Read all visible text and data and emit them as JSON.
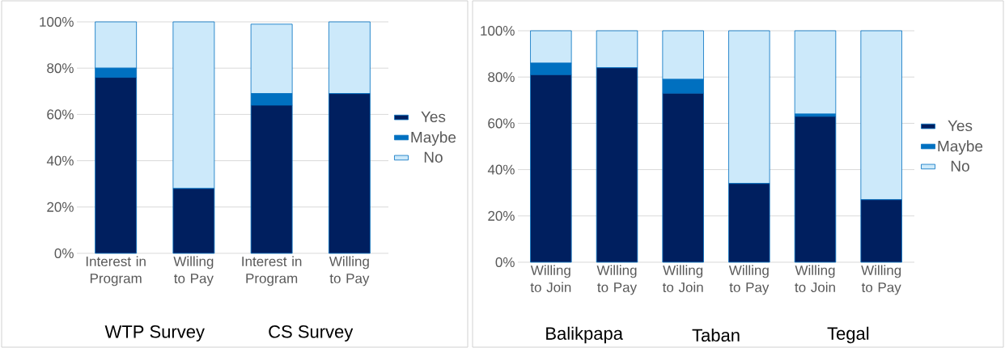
{
  "chart_data": [
    {
      "type": "bar",
      "stacked": true,
      "categories": [
        "Interest in Program",
        "Willing to Pay",
        "Interest in Program",
        "Willing to Pay"
      ],
      "series": [
        {
          "name": "Yes",
          "color": "#001f5f",
          "values": [
            76,
            28,
            64,
            69
          ]
        },
        {
          "name": "Maybe",
          "color": "#0070c0",
          "values": [
            4,
            0,
            5,
            0
          ]
        },
        {
          "name": "No",
          "color": "#cce9fa",
          "values": [
            20,
            72,
            30,
            31
          ]
        }
      ],
      "ylim": [
        0,
        100
      ],
      "yticks": [
        {
          "value": 0,
          "label": "0%"
        },
        {
          "value": 20,
          "label": "20%"
        },
        {
          "value": 40,
          "label": "40%"
        },
        {
          "value": 60,
          "label": "60%"
        },
        {
          "value": 80,
          "label": "80%"
        },
        {
          "value": 100,
          "label": "100%"
        }
      ],
      "grid": "y",
      "legend": "right",
      "annotations": [
        "WTP Survey",
        "CS Survey"
      ]
    },
    {
      "type": "bar",
      "stacked": true,
      "categories": [
        "Willing to Join",
        "Willing to Pay",
        "Willing to Join",
        "Willing to Pay",
        "Willing to Join",
        "Willing to Pay"
      ],
      "series": [
        {
          "name": "Yes",
          "color": "#001f5f",
          "values": [
            81,
            84,
            73,
            34,
            63,
            27
          ]
        },
        {
          "name": "Maybe",
          "color": "#0070c0",
          "values": [
            5,
            0,
            6,
            0,
            1,
            0
          ]
        },
        {
          "name": "No",
          "color": "#cce9fa",
          "values": [
            14,
            16,
            21,
            66,
            36,
            73
          ]
        }
      ],
      "ylim": [
        0,
        100
      ],
      "yticks": [
        {
          "value": 0,
          "label": "0%"
        },
        {
          "value": 20,
          "label": "20%"
        },
        {
          "value": 40,
          "label": "40%"
        },
        {
          "value": 60,
          "label": "60%"
        },
        {
          "value": 80,
          "label": "80%"
        },
        {
          "value": 100,
          "label": "100%"
        }
      ],
      "grid": "y",
      "legend": "right",
      "annotations": [
        "Balikpapa",
        "Taban",
        "Tegal"
      ]
    }
  ]
}
